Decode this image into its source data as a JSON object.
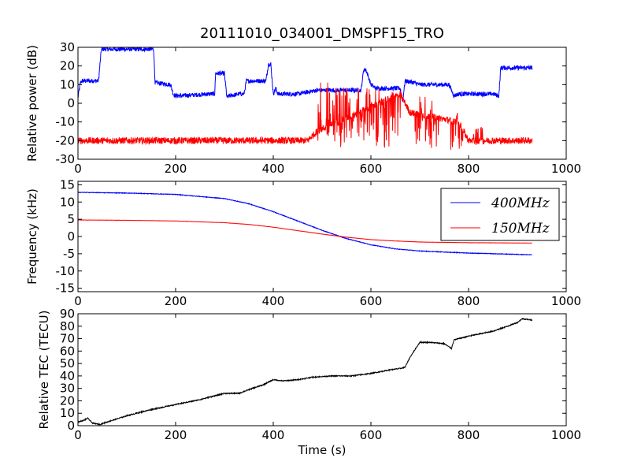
{
  "figure": {
    "title": "20111010_034001_DMSPF15_TRO"
  },
  "chart_data": [
    {
      "type": "line",
      "ylabel": "Relative power (dB)",
      "xlabel": "",
      "xlim": [
        0,
        1000
      ],
      "ylim": [
        -30,
        30
      ],
      "xticks": [
        0,
        200,
        400,
        600,
        800,
        1000
      ],
      "yticks": [
        -30,
        -20,
        -10,
        0,
        10,
        20,
        30
      ],
      "legend": null,
      "series": [
        {
          "color": "#0000ff",
          "noise": 1.2,
          "x": [
            0,
            5,
            8,
            42,
            48,
            150,
            155,
            158,
            190,
            195,
            200,
            210,
            270,
            280,
            282,
            300,
            305,
            310,
            330,
            340,
            345,
            385,
            390,
            395,
            400,
            405,
            410,
            440,
            450,
            490,
            500,
            550,
            580,
            585,
            590,
            600,
            610,
            660,
            665,
            670,
            690,
            700,
            760,
            770,
            780,
            850,
            862,
            866,
            870,
            930
          ],
          "y": [
            3,
            11,
            12,
            12,
            29,
            29,
            29,
            11,
            10,
            5,
            4,
            4,
            5,
            5,
            16,
            16,
            3,
            4,
            5,
            5,
            12,
            12,
            21,
            21,
            5,
            8,
            5,
            5,
            5,
            7,
            7,
            7,
            7,
            18,
            18,
            10,
            8,
            8,
            1,
            12,
            11,
            10,
            10,
            4,
            5,
            5,
            4,
            19,
            19,
            19
          ]
        },
        {
          "color": "#ff0000",
          "noise": 1.8,
          "x": [
            0,
            470,
            490,
            660,
            680,
            780,
            800,
            930
          ],
          "y": [
            -20,
            -20,
            -15,
            5,
            -5,
            -10,
            -20,
            -20
          ],
          "bursts": [
            [
              490,
              520,
              -22,
              12
            ],
            [
              520,
              560,
              -24,
              10
            ],
            [
              560,
              600,
              -20,
              10
            ],
            [
              600,
              660,
              -25,
              8
            ],
            [
              690,
              740,
              -24,
              5
            ],
            [
              760,
              790,
              -25,
              -5
            ],
            [
              810,
              830,
              -24,
              -12
            ]
          ]
        }
      ]
    },
    {
      "type": "line",
      "ylabel": "Frequency (kHz)",
      "xlabel": "",
      "xlim": [
        0,
        1000
      ],
      "ylim": [
        -16,
        16
      ],
      "xticks": [
        0,
        200,
        400,
        600,
        800,
        1000
      ],
      "yticks": [
        -15,
        -10,
        -5,
        0,
        5,
        10,
        15
      ],
      "legend": "top-right",
      "series": [
        {
          "name": "400MHz",
          "color": "#0000ff",
          "noise": 0.08,
          "x": [
            0,
            100,
            200,
            300,
            350,
            400,
            450,
            500,
            550,
            600,
            650,
            700,
            800,
            930
          ],
          "y": [
            12.8,
            12.6,
            12.2,
            11.0,
            9.5,
            7.2,
            4.5,
            1.8,
            -0.6,
            -2.4,
            -3.6,
            -4.2,
            -4.8,
            -5.3
          ]
        },
        {
          "name": "150MHz",
          "color": "#ff0000",
          "noise": 0.03,
          "x": [
            0,
            100,
            200,
            300,
            350,
            400,
            450,
            500,
            550,
            600,
            650,
            700,
            800,
            930
          ],
          "y": [
            4.8,
            4.7,
            4.5,
            4.0,
            3.5,
            2.7,
            1.7,
            0.7,
            -0.2,
            -0.9,
            -1.3,
            -1.6,
            -1.8,
            -1.9
          ]
        }
      ]
    },
    {
      "type": "line",
      "ylabel": "Relative TEC (TECU)",
      "xlabel": "Time (s)",
      "xlim": [
        0,
        1000
      ],
      "ylim": [
        0,
        90
      ],
      "xticks": [
        0,
        200,
        400,
        600,
        800,
        1000
      ],
      "yticks": [
        0,
        10,
        20,
        30,
        40,
        50,
        60,
        70,
        80,
        90
      ],
      "legend": null,
      "series": [
        {
          "color": "#000000",
          "noise": 0.4,
          "x": [
            0,
            10,
            20,
            30,
            45,
            60,
            100,
            150,
            200,
            250,
            300,
            330,
            350,
            380,
            400,
            420,
            450,
            480,
            520,
            560,
            600,
            640,
            660,
            670,
            680,
            700,
            720,
            750,
            765,
            770,
            780,
            800,
            850,
            880,
            900,
            910,
            930
          ],
          "y": [
            3,
            4,
            6,
            2,
            1,
            3,
            8,
            13,
            17,
            21,
            26,
            26,
            29,
            33,
            37,
            36,
            37,
            39,
            40,
            40,
            42,
            45,
            46,
            47,
            55,
            67,
            67,
            66,
            62,
            69,
            70,
            72,
            76,
            80,
            83,
            86,
            85
          ]
        }
      ]
    }
  ]
}
